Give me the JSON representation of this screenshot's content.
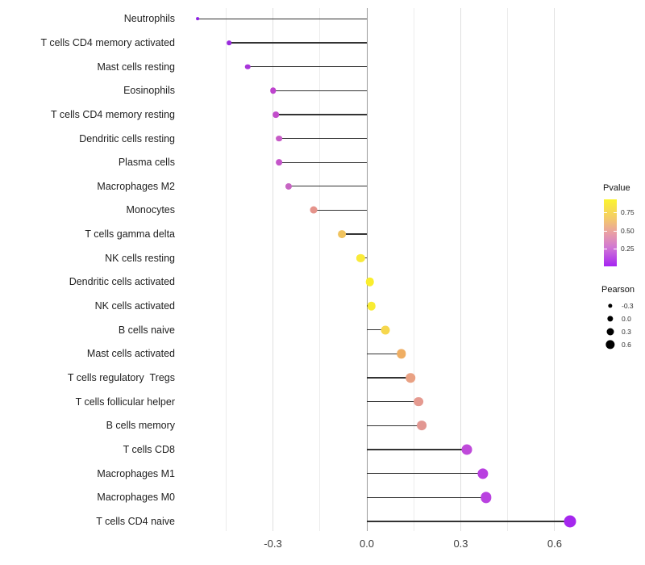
{
  "chart_data": {
    "type": "scatter",
    "variant": "lollipop",
    "title": "",
    "xlabel": "",
    "ylabel": "",
    "categories": [
      "Neutrophils",
      "T cells CD4 memory activated",
      "Mast cells resting",
      "Eosinophils",
      "T cells CD4 memory resting",
      "Dendritic cells resting",
      "Plasma cells",
      "Macrophages M2",
      "Monocytes",
      "T cells gamma delta",
      "NK cells resting",
      "Dendritic cells activated",
      "NK cells activated",
      "B cells naive",
      "Mast cells activated",
      "T cells regulatory  Tregs",
      "T cells follicular helper",
      "B cells memory",
      "T cells CD8",
      "Macrophages M1",
      "Macrophages M0",
      "T cells CD4 naive"
    ],
    "points": [
      {
        "label": "Neutrophils",
        "pearson": -0.54,
        "pvalue_approx": 0.03,
        "color": "#8E22E3"
      },
      {
        "label": "T cells CD4 memory activated",
        "pearson": -0.44,
        "pvalue_approx": 0.07,
        "color": "#9A2BDD"
      },
      {
        "label": "Mast cells resting",
        "pearson": -0.38,
        "pvalue_approx": 0.12,
        "color": "#A835DA"
      },
      {
        "label": "Eosinophils",
        "pearson": -0.3,
        "pvalue_approx": 0.2,
        "color": "#BE43CE"
      },
      {
        "label": "T cells CD4 memory resting",
        "pearson": -0.29,
        "pvalue_approx": 0.22,
        "color": "#C24DCB"
      },
      {
        "label": "Dendritic cells resting",
        "pearson": -0.28,
        "pvalue_approx": 0.25,
        "color": "#C75BC7"
      },
      {
        "label": "Plasma cells",
        "pearson": -0.28,
        "pvalue_approx": 0.24,
        "color": "#C455C9"
      },
      {
        "label": "Macrophages M2",
        "pearson": -0.25,
        "pvalue_approx": 0.27,
        "color": "#C765C3"
      },
      {
        "label": "Monocytes",
        "pearson": -0.17,
        "pvalue_approx": 0.52,
        "color": "#E5938B"
      },
      {
        "label": "T cells gamma delta",
        "pearson": -0.08,
        "pvalue_approx": 0.72,
        "color": "#F0C35E"
      },
      {
        "label": "NK cells resting",
        "pearson": -0.02,
        "pvalue_approx": 0.9,
        "color": "#F9EA39"
      },
      {
        "label": "Dendritic cells activated",
        "pearson": 0.01,
        "pvalue_approx": 0.92,
        "color": "#FAEE2D"
      },
      {
        "label": "NK cells activated",
        "pearson": 0.015,
        "pvalue_approx": 0.91,
        "color": "#F8EC33"
      },
      {
        "label": "B cells naive",
        "pearson": 0.06,
        "pvalue_approx": 0.81,
        "color": "#F6D74D"
      },
      {
        "label": "Mast cells activated",
        "pearson": 0.11,
        "pvalue_approx": 0.67,
        "color": "#EFAE63"
      },
      {
        "label": "T cells regulatory  Tregs",
        "pearson": 0.14,
        "pvalue_approx": 0.58,
        "color": "#E9A183"
      },
      {
        "label": "T cells follicular helper",
        "pearson": 0.165,
        "pvalue_approx": 0.55,
        "color": "#E59A90"
      },
      {
        "label": "B cells memory",
        "pearson": 0.175,
        "pvalue_approx": 0.53,
        "color": "#E29792"
      },
      {
        "label": "T cells CD8",
        "pearson": 0.32,
        "pvalue_approx": 0.21,
        "color": "#BF4ADA"
      },
      {
        "label": "Macrophages M1",
        "pearson": 0.37,
        "pvalue_approx": 0.17,
        "color": "#B93FE0"
      },
      {
        "label": "Macrophages M0",
        "pearson": 0.38,
        "pvalue_approx": 0.17,
        "color": "#B942E0"
      },
      {
        "label": "T cells CD4 naive",
        "pearson": 0.65,
        "pvalue_approx": 0.05,
        "color": "#A527EE"
      }
    ],
    "axes": {
      "x": {
        "range": [
          -0.6,
          0.72
        ],
        "ticks": [
          -0.3,
          0.0,
          0.3,
          0.6
        ],
        "tick_labels": [
          "-0.3",
          "0.0",
          "0.3",
          "0.6"
        ],
        "minor_gridlines": [
          -0.45,
          -0.15,
          0.15,
          0.45
        ],
        "zero_line": 0.0,
        "grid": true
      }
    },
    "legend_position": "right"
  },
  "legend": {
    "pvalue": {
      "title": "Pvalue",
      "tick_labels": [
        "0.75",
        "0.50",
        "0.25"
      ],
      "tick_values": [
        0.75,
        0.5,
        0.25
      ],
      "bar_range": [
        0,
        0.93
      ],
      "gradient_top_to_bottom": [
        "#FBF42F",
        "#F4CB68",
        "#E99FA4",
        "#D177D4",
        "#A624F2"
      ]
    },
    "pearson": {
      "title": "Pearson",
      "entries": [
        "-0.3",
        "0.0",
        "0.3",
        "0.6"
      ],
      "entry_values": [
        -0.3,
        0.0,
        0.3,
        0.6
      ],
      "dot_color": "#000000"
    }
  }
}
